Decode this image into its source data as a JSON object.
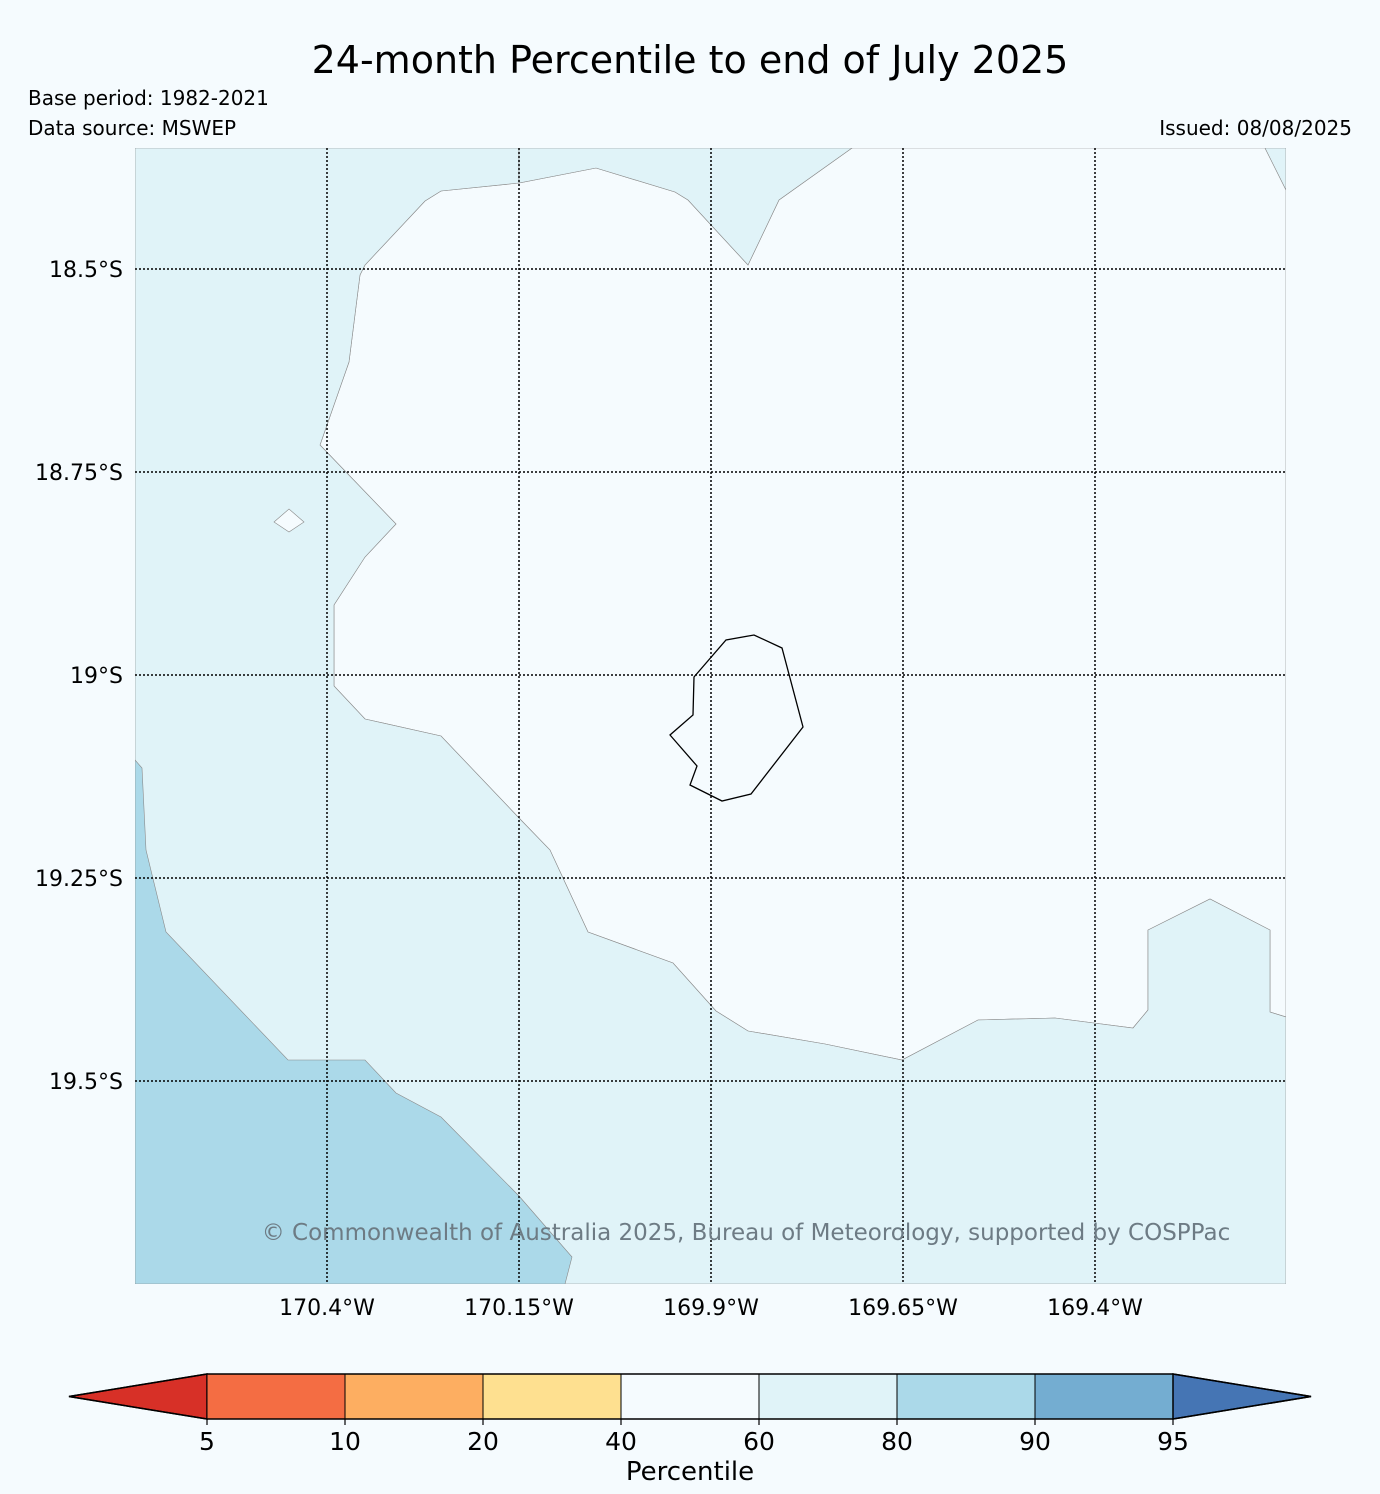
{
  "title": "24-month Percentile to end of July 2025",
  "base_period": "Base period: 1982-2021",
  "data_source": "Data source: MSWEP",
  "issued": "Issued: 08/08/2025",
  "copyright": "© Commonwealth of Australia 2025, Bureau of Meteorology, supported by COSPPac",
  "latitude_labels": [
    "18.5°S",
    "18.75°S",
    "19°S",
    "19.25°S",
    "19.5°S"
  ],
  "longitude_labels": [
    "170.4°W",
    "170.15°W",
    "169.9°W",
    "169.65°W",
    "169.4°W"
  ],
  "colorbar": {
    "label": "Percentile",
    "ticks": [
      "5",
      "10",
      "20",
      "40",
      "60",
      "80",
      "90",
      "95"
    ],
    "colors": [
      "#d73027",
      "#f46d43",
      "#fdae61",
      "#fee090",
      "#f5fbfe",
      "#e0f3f8",
      "#abd9e9",
      "#74add1",
      "#4575b4"
    ]
  },
  "map_colors": {
    "band_40_60": "#f5fbfe",
    "band_60_80": "#e0f3f8",
    "band_80_90": "#abd9e9"
  },
  "features": [
    "island-outline"
  ]
}
